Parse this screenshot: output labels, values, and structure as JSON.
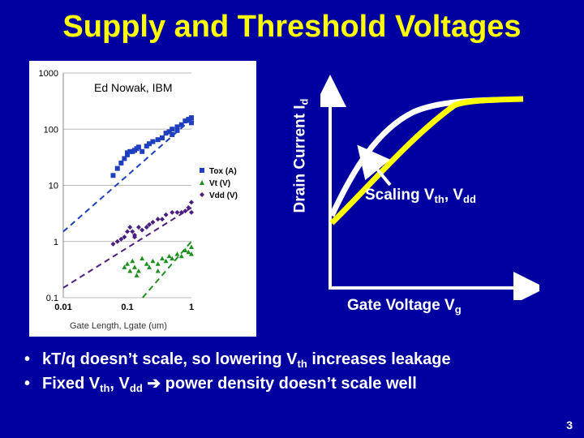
{
  "slide": {
    "title": "Supply and Threshold Voltages",
    "page_number": "3"
  },
  "scatter": {
    "credit": "Ed Nowak, IBM",
    "y_ticks": [
      "1000",
      "100",
      "10",
      "1",
      "0.1"
    ],
    "x_ticks": [
      "0.01",
      "0.1",
      "1"
    ],
    "x_label": "Gate Length, Lgate (um)",
    "legend": [
      {
        "label": "Tox (A)",
        "color": "#1f3fbf",
        "marker": "square"
      },
      {
        "label": "Vt (V)",
        "color": "#1f8f1f",
        "marker": "triangle"
      },
      {
        "label": "Vdd (V)",
        "color": "#4b1f7f",
        "marker": "diamond"
      }
    ]
  },
  "chart_data": {
    "type": "scatter",
    "xlabel": "Gate Length, Lgate (um)",
    "ylabel": "",
    "x_log": true,
    "y_log": true,
    "xlim": [
      0.01,
      1
    ],
    "ylim": [
      0.1,
      1000
    ],
    "series": [
      {
        "name": "Tox (A)",
        "points": [
          [
            0.06,
            15
          ],
          [
            0.07,
            20
          ],
          [
            0.08,
            25
          ],
          [
            0.09,
            30
          ],
          [
            0.1,
            38
          ],
          [
            0.1,
            35
          ],
          [
            0.11,
            40
          ],
          [
            0.12,
            40
          ],
          [
            0.13,
            42
          ],
          [
            0.14,
            45
          ],
          [
            0.15,
            48
          ],
          [
            0.17,
            40
          ],
          [
            0.2,
            50
          ],
          [
            0.22,
            55
          ],
          [
            0.25,
            60
          ],
          [
            0.3,
            65
          ],
          [
            0.35,
            70
          ],
          [
            0.4,
            85
          ],
          [
            0.45,
            90
          ],
          [
            0.5,
            100
          ],
          [
            0.6,
            110
          ],
          [
            0.7,
            120
          ],
          [
            0.8,
            140
          ],
          [
            0.9,
            150
          ],
          [
            1.0,
            130
          ],
          [
            1.0,
            160
          ],
          [
            0.6,
            95
          ],
          [
            0.5,
            80
          ]
        ]
      },
      {
        "name": "Vt (V)",
        "points": [
          [
            0.09,
            0.35
          ],
          [
            0.1,
            0.4
          ],
          [
            0.11,
            0.3
          ],
          [
            0.12,
            0.45
          ],
          [
            0.13,
            0.35
          ],
          [
            0.15,
            0.3
          ],
          [
            0.17,
            0.5
          ],
          [
            0.2,
            0.4
          ],
          [
            0.22,
            0.35
          ],
          [
            0.25,
            0.45
          ],
          [
            0.3,
            0.4
          ],
          [
            0.35,
            0.5
          ],
          [
            0.4,
            0.45
          ],
          [
            0.45,
            0.55
          ],
          [
            0.5,
            0.5
          ],
          [
            0.6,
            0.6
          ],
          [
            0.7,
            0.55
          ],
          [
            0.8,
            0.7
          ],
          [
            0.9,
            0.65
          ],
          [
            1.0,
            0.8
          ],
          [
            1.0,
            0.6
          ],
          [
            0.14,
            0.25
          ],
          [
            0.3,
            0.3
          ]
        ]
      },
      {
        "name": "Vdd (V)",
        "points": [
          [
            0.06,
            0.9
          ],
          [
            0.07,
            1.0
          ],
          [
            0.08,
            1.1
          ],
          [
            0.09,
            1.2
          ],
          [
            0.1,
            1.5
          ],
          [
            0.11,
            1.8
          ],
          [
            0.12,
            1.5
          ],
          [
            0.13,
            1.2
          ],
          [
            0.15,
            1.8
          ],
          [
            0.17,
            1.6
          ],
          [
            0.2,
            1.8
          ],
          [
            0.22,
            2.0
          ],
          [
            0.25,
            2.2
          ],
          [
            0.3,
            2.5
          ],
          [
            0.35,
            2.5
          ],
          [
            0.4,
            3.0
          ],
          [
            0.5,
            3.3
          ],
          [
            0.6,
            3.3
          ],
          [
            0.7,
            3.3
          ],
          [
            0.8,
            3.5
          ],
          [
            0.9,
            4.0
          ],
          [
            1.0,
            5.0
          ],
          [
            1.0,
            3.3
          ],
          [
            0.13,
            1.3
          ]
        ]
      }
    ],
    "trend_lines": [
      {
        "name": "Tox (A)",
        "from": [
          0.01,
          1.5
        ],
        "to": [
          1.0,
          150
        ]
      },
      {
        "name": "Vdd (V)",
        "from": [
          0.01,
          0.15
        ],
        "to": [
          1.0,
          4.0
        ]
      },
      {
        "name": "Vt (V)",
        "from": [
          0.03,
          0.01
        ],
        "to": [
          1.0,
          1.0
        ]
      }
    ]
  },
  "curves": {
    "y_label": "Drain Current I",
    "y_label_sub": "d",
    "x_label": "Gate Voltage V",
    "x_label_sub": "g",
    "scaling_label": "Scaling V",
    "scaling_sub1": "th",
    "scaling_mid": ", V",
    "scaling_sub2": "dd",
    "colors": {
      "old_curve": "#ffffff",
      "new_curve": "#ffff00",
      "axes": "#ffffff"
    }
  },
  "bullets": [
    {
      "dot": "•",
      "pre": "kT/q doesn’t scale, so lowering V",
      "sub": "th",
      "post": " increases leakage"
    },
    {
      "dot": "•",
      "pre": "Fixed V",
      "sub": "th",
      "mid": ", V",
      "sub2": "dd",
      "arrow": "➔",
      "post": " power density doesn’t scale well"
    }
  ]
}
